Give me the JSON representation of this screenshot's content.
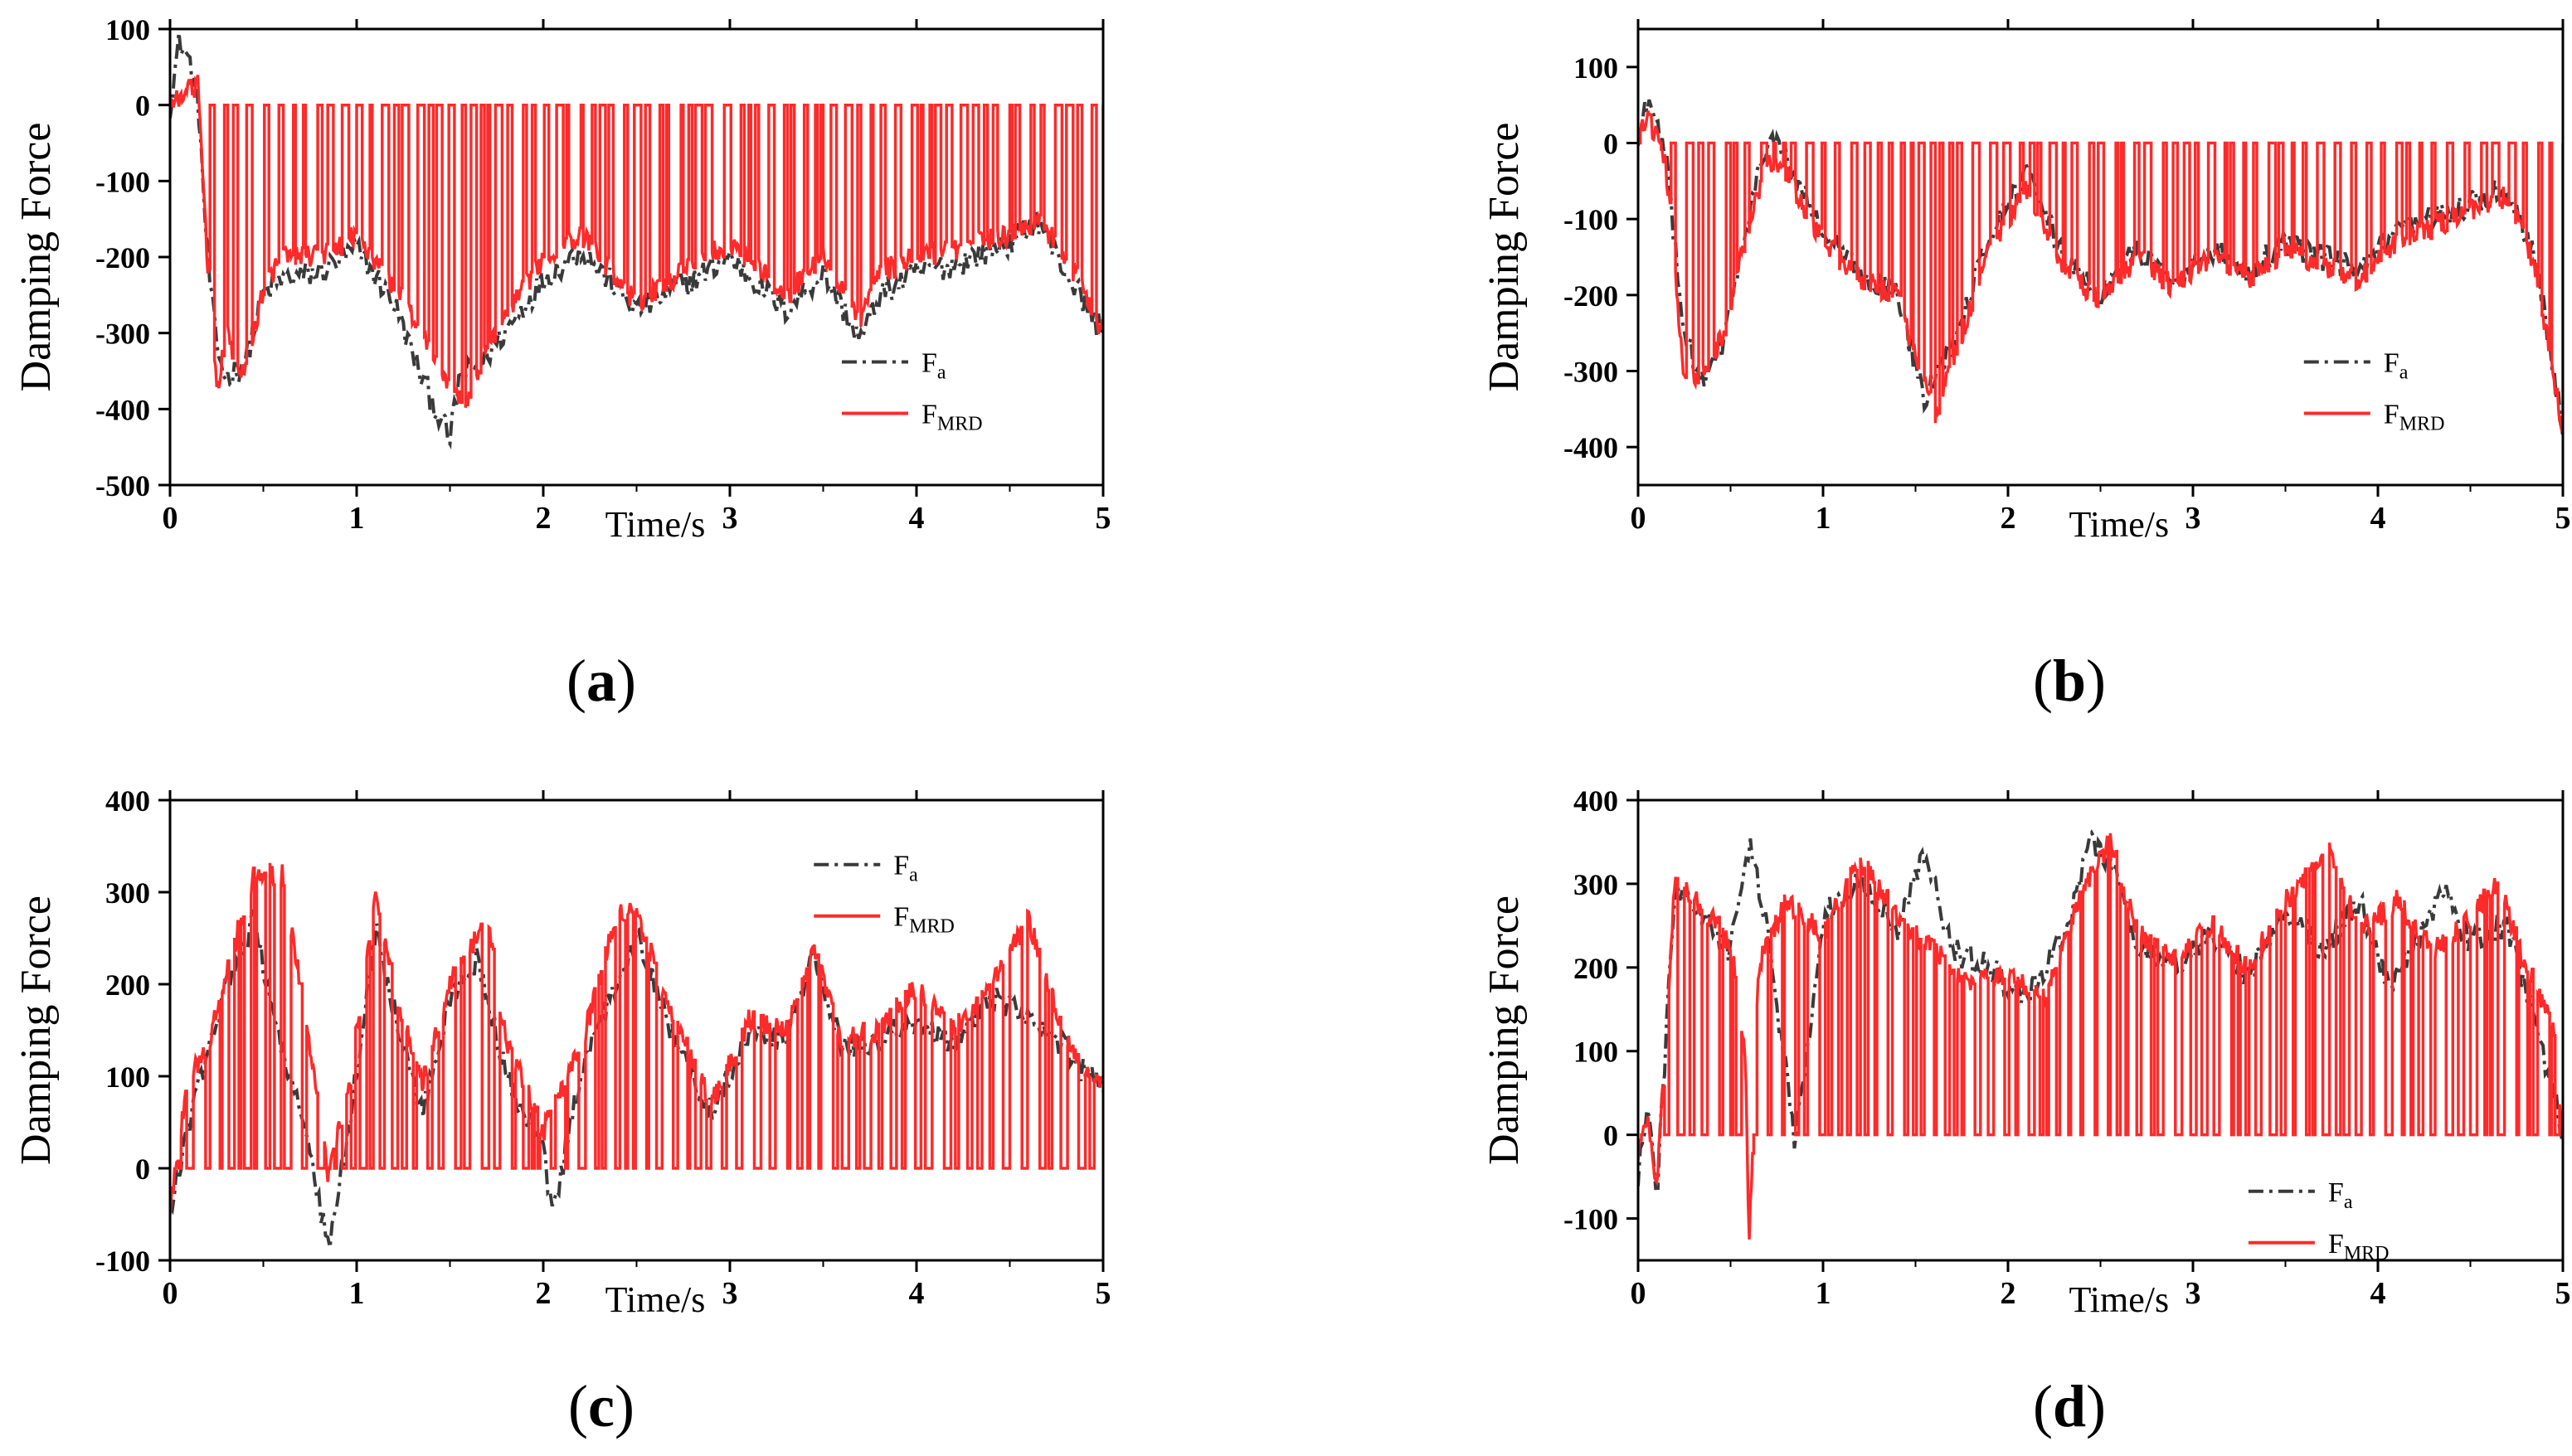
{
  "colors": {
    "fa": "#3a3a3a",
    "fmrd": "#ff2a2a",
    "axis": "#000000"
  },
  "chart_data": [
    {
      "type": "line",
      "label": "a",
      "ylabel": "Damping Force",
      "xlabel": "Time/s",
      "xlim": [
        0,
        5
      ],
      "ylim": [
        -500,
        100
      ],
      "xticks": [
        0,
        1,
        2,
        3,
        4,
        5
      ],
      "yticks": [
        100,
        0,
        -100,
        -200,
        -300,
        -400,
        -500
      ],
      "legend_position": "lower-right",
      "mode": "neg",
      "series": [
        {
          "name": "Fa",
          "legend": {
            "main": "F",
            "sub": "a"
          },
          "style": "dash-dot",
          "x": [
            0,
            0.05,
            0.1,
            0.15,
            0.2,
            0.25,
            0.3,
            0.4,
            0.5,
            0.6,
            0.8,
            1.0,
            1.2,
            1.35,
            1.5,
            1.55,
            1.7,
            2.0,
            2.2,
            2.5,
            2.8,
            3.0,
            3.3,
            3.5,
            3.7,
            3.8,
            4.0,
            4.2,
            4.5,
            4.65,
            4.8,
            5.0
          ],
          "y": [
            0,
            85,
            60,
            10,
            -200,
            -320,
            -360,
            -340,
            -250,
            -230,
            -220,
            -190,
            -260,
            -360,
            -440,
            -360,
            -330,
            -230,
            -190,
            -270,
            -230,
            -200,
            -270,
            -220,
            -310,
            -250,
            -220,
            -210,
            -180,
            -150,
            -220,
            -300
          ]
        },
        {
          "name": "FMRD",
          "legend": {
            "main": "F",
            "sub": "MRD"
          },
          "style": "solid",
          "x": [
            0,
            0.1,
            0.15,
            0.2,
            0.25,
            0.3,
            0.4,
            0.5,
            0.6,
            0.8,
            1.0,
            1.2,
            1.35,
            1.5,
            1.6,
            1.7,
            2.0,
            2.2,
            2.5,
            2.8,
            3.0,
            3.3,
            3.5,
            3.7,
            3.8,
            4.0,
            4.2,
            4.5,
            4.65,
            4.8,
            5.0
          ],
          "y": [
            0,
            20,
            25,
            -200,
            -380,
            -300,
            -360,
            -240,
            -200,
            -200,
            -170,
            -240,
            -300,
            -370,
            -390,
            -320,
            -200,
            -170,
            -260,
            -210,
            -180,
            -250,
            -200,
            -280,
            -220,
            -200,
            -190,
            -170,
            -150,
            -200,
            -300
          ]
        }
      ]
    },
    {
      "type": "line",
      "label": "b",
      "ylabel": "Damping Force",
      "xlabel": "Time/s",
      "xlim": [
        0,
        5
      ],
      "ylim": [
        -450,
        150
      ],
      "xticks": [
        0,
        1,
        2,
        3,
        4,
        5
      ],
      "yticks": [
        100,
        0,
        -100,
        -200,
        -300,
        -400
      ],
      "legend_position": "lower-right",
      "mode": "neg",
      "series": [
        {
          "name": "Fa",
          "legend": {
            "main": "F",
            "sub": "a"
          },
          "style": "dash-dot",
          "x": [
            0,
            0.05,
            0.15,
            0.25,
            0.35,
            0.45,
            0.6,
            0.7,
            0.8,
            1.0,
            1.2,
            1.4,
            1.55,
            1.7,
            1.9,
            2.1,
            2.3,
            2.5,
            2.7,
            2.9,
            3.1,
            3.3,
            3.5,
            3.7,
            3.9,
            4.1,
            4.3,
            4.5,
            4.7,
            4.85,
            5.0
          ],
          "y": [
            0,
            60,
            -20,
            -250,
            -320,
            -270,
            -100,
            10,
            -20,
            -120,
            -170,
            -200,
            -340,
            -260,
            -120,
            -40,
            -150,
            -200,
            -140,
            -180,
            -140,
            -170,
            -130,
            -150,
            -170,
            -120,
            -100,
            -80,
            -60,
            -150,
            -370
          ]
        },
        {
          "name": "FMRD",
          "legend": {
            "main": "F",
            "sub": "MRD"
          },
          "style": "solid",
          "x": [
            0,
            0.05,
            0.15,
            0.25,
            0.35,
            0.45,
            0.6,
            0.7,
            0.8,
            1.0,
            1.2,
            1.4,
            1.6,
            1.7,
            1.9,
            2.1,
            2.3,
            2.5,
            2.7,
            2.9,
            3.1,
            3.3,
            3.5,
            3.7,
            3.9,
            4.1,
            4.3,
            4.5,
            4.7,
            4.85,
            5.0
          ],
          "y": [
            0,
            40,
            -30,
            -310,
            -300,
            -260,
            -110,
            -20,
            -40,
            -130,
            -180,
            -200,
            -360,
            -290,
            -140,
            -60,
            -160,
            -210,
            -150,
            -190,
            -150,
            -180,
            -140,
            -160,
            -180,
            -130,
            -110,
            -90,
            -70,
            -160,
            -380
          ]
        }
      ]
    },
    {
      "type": "line",
      "label": "c",
      "ylabel": "Damping Force",
      "xlabel": "Time/s",
      "xlim": [
        0,
        5
      ],
      "ylim": [
        -100,
        400
      ],
      "xticks": [
        0,
        1,
        2,
        3,
        4,
        5
      ],
      "yticks": [
        400,
        300,
        200,
        100,
        0,
        -100
      ],
      "legend_position": "top-right",
      "mode": "pos",
      "series": [
        {
          "name": "Fa",
          "legend": {
            "main": "F",
            "sub": "a"
          },
          "style": "dash-dot",
          "x": [
            0,
            0.1,
            0.2,
            0.3,
            0.45,
            0.55,
            0.7,
            0.85,
            0.95,
            1.1,
            1.2,
            1.35,
            1.5,
            1.65,
            1.8,
            2.0,
            2.05,
            2.2,
            2.35,
            2.5,
            2.7,
            2.9,
            3.1,
            3.3,
            3.45,
            3.6,
            3.8,
            4.0,
            4.2,
            4.4,
            4.6,
            4.8,
            5.0
          ],
          "y": [
            -50,
            50,
            120,
            200,
            270,
            170,
            60,
            -90,
            30,
            260,
            170,
            60,
            180,
            230,
            100,
            20,
            -55,
            100,
            180,
            260,
            140,
            60,
            150,
            140,
            230,
            130,
            140,
            160,
            130,
            190,
            160,
            130,
            80
          ]
        },
        {
          "name": "FMRD",
          "legend": {
            "main": "F",
            "sub": "MRD"
          },
          "style": "solid",
          "x": [
            0,
            0.1,
            0.2,
            0.3,
            0.45,
            0.6,
            0.7,
            0.85,
            0.95,
            1.1,
            1.2,
            1.35,
            1.5,
            1.7,
            1.8,
            2.0,
            2.2,
            2.4,
            2.5,
            2.7,
            2.9,
            3.1,
            3.3,
            3.45,
            3.6,
            3.8,
            4.0,
            4.2,
            4.4,
            4.6,
            4.8,
            5.0
          ],
          "y": [
            -40,
            100,
            130,
            210,
            320,
            320,
            200,
            -10,
            80,
            290,
            200,
            90,
            200,
            270,
            140,
            40,
            130,
            280,
            280,
            160,
            70,
            160,
            150,
            240,
            140,
            150,
            200,
            150,
            200,
            270,
            140,
            90
          ]
        }
      ]
    },
    {
      "type": "line",
      "label": "d",
      "ylabel": "Damping Force",
      "xlabel": "Time/s",
      "xlim": [
        0,
        5
      ],
      "ylim": [
        -150,
        400
      ],
      "xticks": [
        0,
        1,
        2,
        3,
        4,
        5
      ],
      "yticks": [
        400,
        300,
        200,
        100,
        0,
        -100
      ],
      "legend_position": "lower-left",
      "mode": "pos",
      "series": [
        {
          "name": "Fa",
          "legend": {
            "main": "F",
            "sub": "a"
          },
          "style": "dash-dot",
          "x": [
            0,
            0.05,
            0.1,
            0.2,
            0.35,
            0.5,
            0.6,
            0.7,
            0.85,
            1.0,
            1.2,
            1.4,
            1.55,
            1.7,
            1.9,
            2.1,
            2.3,
            2.45,
            2.55,
            2.7,
            2.9,
            3.1,
            3.3,
            3.5,
            3.7,
            3.9,
            4.05,
            4.2,
            4.35,
            4.5,
            4.7,
            4.85,
            4.95,
            5.0
          ],
          "y": [
            -50,
            40,
            -80,
            300,
            260,
            220,
            350,
            240,
            -10,
            260,
            310,
            240,
            340,
            220,
            200,
            160,
            240,
            350,
            330,
            220,
            200,
            240,
            190,
            270,
            220,
            280,
            180,
            230,
            290,
            230,
            250,
            130,
            50,
            0
          ]
        },
        {
          "name": "FMRD",
          "legend": {
            "main": "F",
            "sub": "MRD"
          },
          "style": "solid",
          "x": [
            0,
            0.05,
            0.1,
            0.2,
            0.35,
            0.5,
            0.58,
            0.6,
            0.65,
            0.8,
            1.0,
            1.2,
            1.4,
            1.6,
            1.8,
            2.0,
            2.2,
            2.4,
            2.55,
            2.7,
            2.9,
            3.1,
            3.3,
            3.5,
            3.75,
            3.9,
            4.1,
            4.3,
            4.5,
            4.65,
            4.8,
            4.95,
            5.0
          ],
          "y": [
            -20,
            20,
            -70,
            310,
            270,
            230,
            100,
            -140,
            200,
            280,
            240,
            330,
            260,
            220,
            180,
            190,
            160,
            290,
            350,
            240,
            210,
            250,
            200,
            280,
            340,
            240,
            280,
            220,
            260,
            300,
            200,
            130,
            0
          ]
        }
      ]
    }
  ]
}
